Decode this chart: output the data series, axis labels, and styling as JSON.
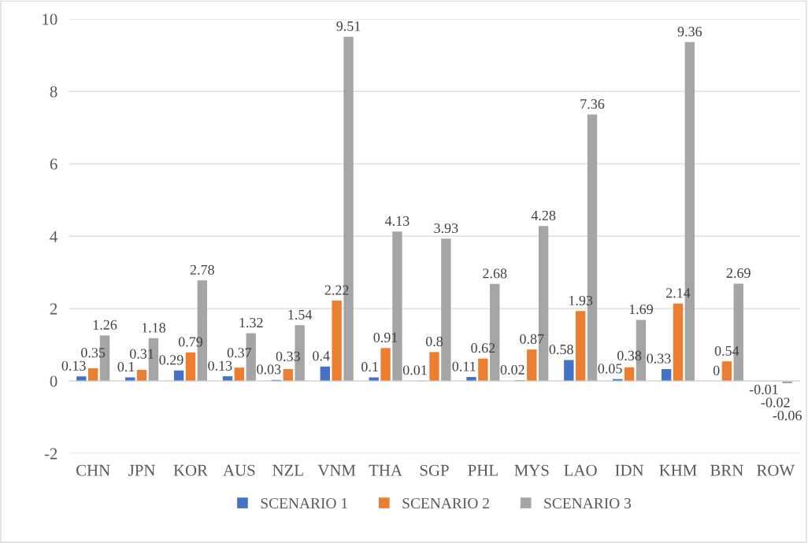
{
  "chart_data": {
    "type": "bar",
    "categories": [
      "CHN",
      "JPN",
      "KOR",
      "AUS",
      "NZL",
      "VNM",
      "THA",
      "SGP",
      "PHL",
      "MYS",
      "LAO",
      "IDN",
      "KHM",
      "BRN",
      "ROW"
    ],
    "series": [
      {
        "name": "SCENARIO 1",
        "color": "#4472c4",
        "values": [
          0.13,
          0.1,
          0.29,
          0.13,
          0.03,
          0.4,
          0.1,
          0.01,
          0.11,
          0.02,
          0.58,
          0.05,
          0.33,
          0,
          -0.01
        ]
      },
      {
        "name": "SCENARIO 2",
        "color": "#ed7d31",
        "values": [
          0.35,
          0.31,
          0.79,
          0.37,
          0.33,
          2.22,
          0.91,
          0.8,
          0.62,
          0.87,
          1.93,
          0.38,
          2.14,
          0.54,
          -0.02
        ]
      },
      {
        "name": "SCENARIO 3",
        "color": "#a5a5a5",
        "values": [
          1.26,
          1.18,
          2.78,
          1.32,
          1.54,
          9.51,
          4.13,
          3.93,
          2.68,
          4.28,
          7.36,
          1.69,
          9.36,
          2.69,
          -0.06
        ]
      }
    ],
    "ylim": [
      -2,
      10
    ],
    "yticks": [
      -2,
      0,
      2,
      4,
      6,
      8,
      10
    ],
    "grid": "y",
    "legend": "bottom",
    "data_labels": true
  }
}
